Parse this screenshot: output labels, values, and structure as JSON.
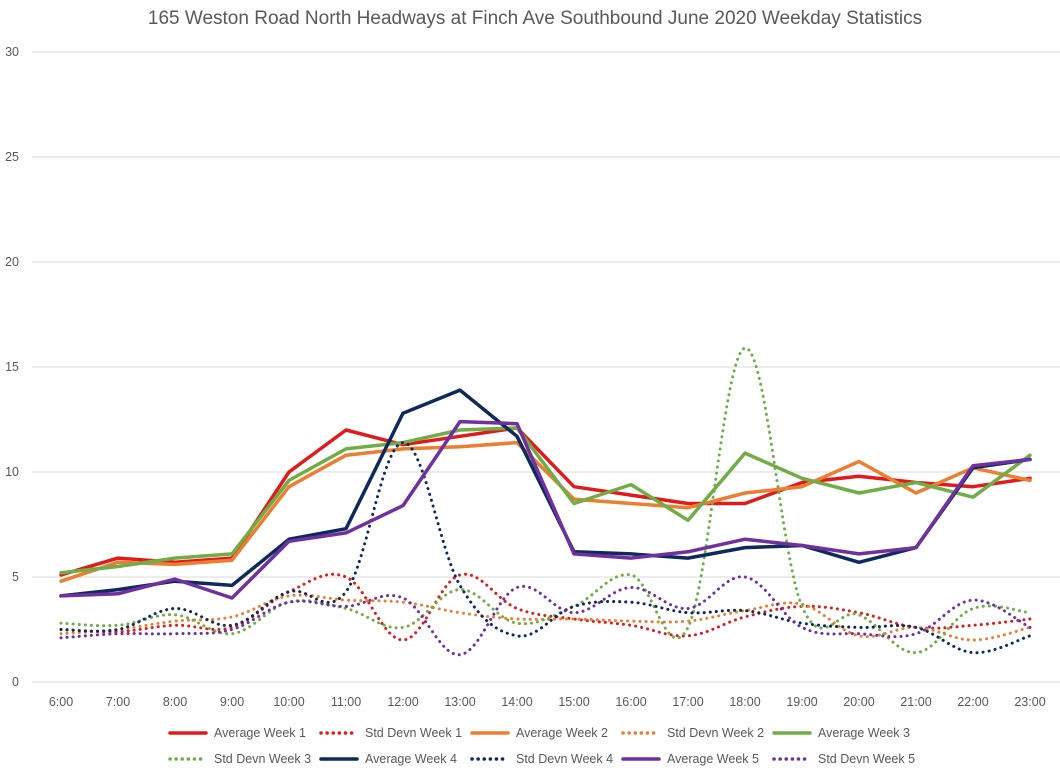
{
  "chart_data": {
    "type": "line",
    "title": "165 Weston Road North Headways at Finch Ave Southbound June 2020 Weekday Statistics",
    "xlabel": "",
    "ylabel": "",
    "ylim": [
      0,
      30
    ],
    "yticks": [
      0,
      5,
      10,
      15,
      20,
      25,
      30
    ],
    "grid": true,
    "legend_position": "bottom",
    "categories": [
      "6:00",
      "7:00",
      "8:00",
      "9:00",
      "10:00",
      "11:00",
      "12:00",
      "13:00",
      "14:00",
      "15:00",
      "16:00",
      "17:00",
      "18:00",
      "19:00",
      "20:00",
      "21:00",
      "22:00",
      "23:00"
    ],
    "series": [
      {
        "name": "Average Week 1",
        "color": "#e31a1c",
        "style": "solid",
        "values": [
          5.1,
          5.9,
          5.7,
          5.9,
          10.0,
          12.0,
          11.3,
          11.7,
          12.1,
          9.3,
          8.9,
          8.5,
          8.5,
          9.5,
          9.8,
          9.5,
          9.3,
          9.7
        ]
      },
      {
        "name": "Std Devn Week 1",
        "color": "#e31a1c",
        "style": "dotted",
        "values": [
          2.5,
          2.4,
          2.7,
          2.6,
          4.3,
          5.0,
          2.0,
          5.1,
          3.5,
          3.0,
          2.7,
          2.2,
          3.1,
          3.6,
          3.3,
          2.6,
          2.7,
          3.0
        ]
      },
      {
        "name": "Average Week 2",
        "color": "#ed7d31",
        "style": "solid",
        "values": [
          4.8,
          5.7,
          5.6,
          5.8,
          9.3,
          10.8,
          11.1,
          11.2,
          11.4,
          8.7,
          8.5,
          8.3,
          9.0,
          9.3,
          10.5,
          9.0,
          10.2,
          9.6
        ]
      },
      {
        "name": "Std Devn Week 2",
        "color": "#ed7d31",
        "style": "dotted",
        "values": [
          2.3,
          2.5,
          2.9,
          3.1,
          4.1,
          3.9,
          3.8,
          3.3,
          3.0,
          3.0,
          2.9,
          2.9,
          3.4,
          3.7,
          2.2,
          2.6,
          2.0,
          2.6
        ]
      },
      {
        "name": "Average Week 3",
        "color": "#70ad47",
        "style": "solid",
        "values": [
          5.2,
          5.5,
          5.9,
          6.1,
          9.6,
          11.1,
          11.4,
          12.0,
          12.1,
          8.5,
          9.4,
          7.7,
          10.9,
          9.7,
          9.0,
          9.5,
          8.8,
          10.8
        ]
      },
      {
        "name": "Std Devn Week 3",
        "color": "#70ad47",
        "style": "dotted",
        "values": [
          2.8,
          2.7,
          3.2,
          2.3,
          3.8,
          3.5,
          2.6,
          4.4,
          2.8,
          3.6,
          5.1,
          2.6,
          15.9,
          3.6,
          3.2,
          1.4,
          3.5,
          3.3
        ]
      },
      {
        "name": "Average Week 4",
        "color": "#0e2a5c",
        "style": "solid",
        "values": [
          4.1,
          4.4,
          4.8,
          4.6,
          6.8,
          7.3,
          12.8,
          13.9,
          11.7,
          6.2,
          6.1,
          5.9,
          6.4,
          6.5,
          5.7,
          6.4,
          10.2,
          10.6
        ]
      },
      {
        "name": "Std Devn Week 4",
        "color": "#0e2a5c",
        "style": "dotted",
        "values": [
          2.5,
          2.5,
          3.5,
          2.7,
          4.3,
          4.3,
          11.4,
          4.6,
          2.2,
          3.6,
          3.8,
          3.3,
          3.4,
          2.8,
          2.6,
          2.6,
          1.4,
          2.2
        ]
      },
      {
        "name": "Average Week 5",
        "color": "#7030a0",
        "style": "solid",
        "values": [
          4.1,
          4.2,
          4.9,
          4.0,
          6.7,
          7.1,
          8.4,
          12.4,
          12.3,
          6.1,
          5.9,
          6.2,
          6.8,
          6.5,
          6.1,
          6.4,
          10.3,
          10.6
        ]
      },
      {
        "name": "Std Devn Week 5",
        "color": "#7030a0",
        "style": "dotted",
        "values": [
          2.1,
          2.3,
          2.3,
          2.5,
          3.8,
          3.6,
          4.0,
          1.3,
          4.5,
          3.3,
          4.5,
          3.5,
          5.0,
          2.6,
          2.3,
          2.3,
          3.9,
          2.6
        ]
      }
    ]
  }
}
